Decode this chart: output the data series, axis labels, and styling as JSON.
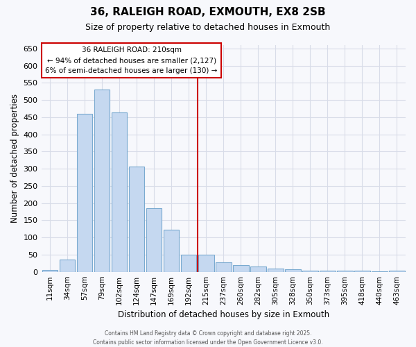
{
  "title1": "36, RALEIGH ROAD, EXMOUTH, EX8 2SB",
  "title2": "Size of property relative to detached houses in Exmouth",
  "xlabel": "Distribution of detached houses by size in Exmouth",
  "ylabel": "Number of detached properties",
  "bar_labels": [
    "11sqm",
    "34sqm",
    "57sqm",
    "79sqm",
    "102sqm",
    "124sqm",
    "147sqm",
    "169sqm",
    "192sqm",
    "215sqm",
    "237sqm",
    "260sqm",
    "282sqm",
    "305sqm",
    "328sqm",
    "350sqm",
    "373sqm",
    "395sqm",
    "418sqm",
    "440sqm",
    "463sqm"
  ],
  "bar_values": [
    5,
    35,
    460,
    530,
    465,
    307,
    185,
    122,
    50,
    50,
    27,
    20,
    15,
    10,
    7,
    4,
    4,
    4,
    4,
    1,
    4
  ],
  "bar_color": "#c5d8f0",
  "bar_edge_color": "#7aaad0",
  "vline_color": "#cc0000",
  "annotation_line1": "36 RALEIGH ROAD: 210sqm",
  "annotation_line2": "← 94% of detached houses are smaller (2,127)",
  "annotation_line3": "6% of semi-detached houses are larger (130) →",
  "annotation_box_color": "#ffffff",
  "annotation_edge_color": "#cc0000",
  "ylim": [
    0,
    660
  ],
  "yticks": [
    0,
    50,
    100,
    150,
    200,
    250,
    300,
    350,
    400,
    450,
    500,
    550,
    600,
    650
  ],
  "background_color": "#f7f8fc",
  "grid_color": "#d8dce8",
  "footer_line1": "Contains HM Land Registry data © Crown copyright and database right 2025.",
  "footer_line2": "Contains public sector information licensed under the Open Government Licence v3.0."
}
